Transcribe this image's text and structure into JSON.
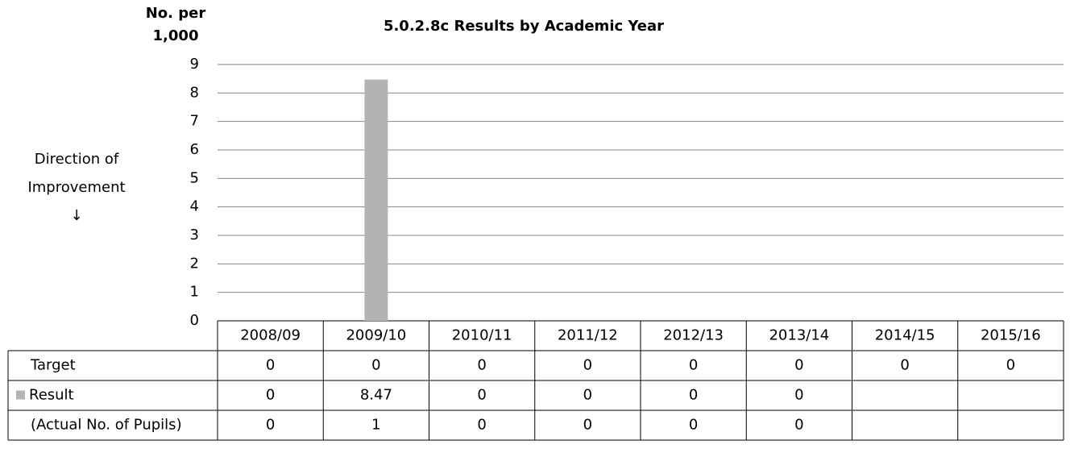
{
  "chart_data": {
    "type": "bar",
    "title": "5.0.2.8c Results by Academic Year",
    "y_label": [
      "No. per",
      "1,000"
    ],
    "annotation": [
      "Direction of",
      "Improvement",
      "↓"
    ],
    "categories": [
      "2008/09",
      "2009/10",
      "2010/11",
      "2011/12",
      "2012/13",
      "2013/14",
      "2014/15",
      "2015/16"
    ],
    "series": [
      {
        "name": "Target",
        "values": [
          0,
          0,
          0,
          0,
          0,
          0,
          0,
          0
        ]
      },
      {
        "name": "Result",
        "color": "#b3b3b3",
        "values": [
          0,
          8.47,
          0,
          0,
          0,
          0,
          null,
          null
        ]
      }
    ],
    "counts": {
      "name": "(Actual No. of Pupils)",
      "values": [
        0,
        1,
        0,
        0,
        0,
        0,
        null,
        null
      ]
    },
    "ylim": [
      0,
      9
    ],
    "yticks": [
      0,
      1,
      2,
      3,
      4,
      5,
      6,
      7,
      8,
      9
    ],
    "grid": true
  }
}
